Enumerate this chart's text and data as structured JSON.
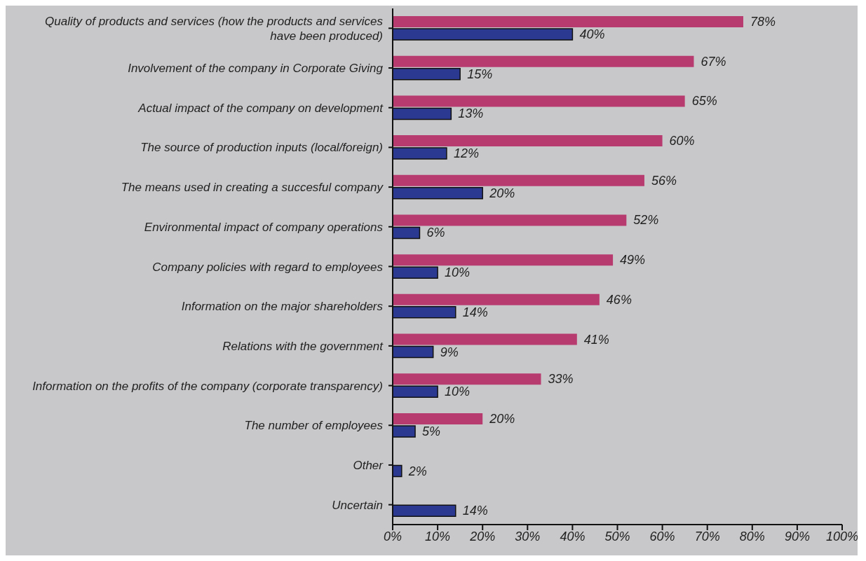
{
  "chart_data": {
    "type": "bar",
    "orientation": "horizontal",
    "categories": [
      "Quality of products and services (how the products and services have been produced)",
      "Involvement of the company in Corporate Giving",
      "Actual impact of the company on development",
      "The source of production inputs (local/foreign)",
      "The means used in creating a succesful company",
      "Environmental impact of company operations",
      "Company policies with regard to employees",
      "Information on the major shareholders",
      "Relations with the government",
      "Information on the profits of the company (corporate transparency)",
      "The number of employees",
      "Other",
      "Uncertain"
    ],
    "series": [
      {
        "color": "#b83b70",
        "values": [
          78,
          67,
          65,
          60,
          56,
          52,
          49,
          46,
          41,
          33,
          20,
          null,
          null
        ],
        "value_labels": [
          "78%",
          "67%",
          "65%",
          "60%",
          "56%",
          "52%",
          "49%",
          "46%",
          "41%",
          "33%",
          "20%",
          null,
          null
        ]
      },
      {
        "color": "#2b3990",
        "values": [
          40,
          15,
          13,
          12,
          20,
          6,
          10,
          14,
          9,
          10,
          5,
          2,
          14
        ],
        "value_labels": [
          "40%",
          "15%",
          "13%",
          "12%",
          "20%",
          "6%",
          "10%",
          "14%",
          "9%",
          "10%",
          "5%",
          "2%",
          "14%"
        ]
      }
    ],
    "xlim": [
      0,
      100
    ],
    "xticks": [
      {
        "value": 0,
        "label": "0%"
      },
      {
        "value": 10,
        "label": "10%"
      },
      {
        "value": 20,
        "label": "20%"
      },
      {
        "value": 30,
        "label": "30%"
      },
      {
        "value": 40,
        "label": "40%"
      },
      {
        "value": 50,
        "label": "50%"
      },
      {
        "value": 60,
        "label": "60%"
      },
      {
        "value": 70,
        "label": "70%"
      },
      {
        "value": 80,
        "label": "80%"
      },
      {
        "value": 90,
        "label": "90%"
      },
      {
        "value": 100,
        "label": "100%"
      }
    ],
    "legend": false
  }
}
